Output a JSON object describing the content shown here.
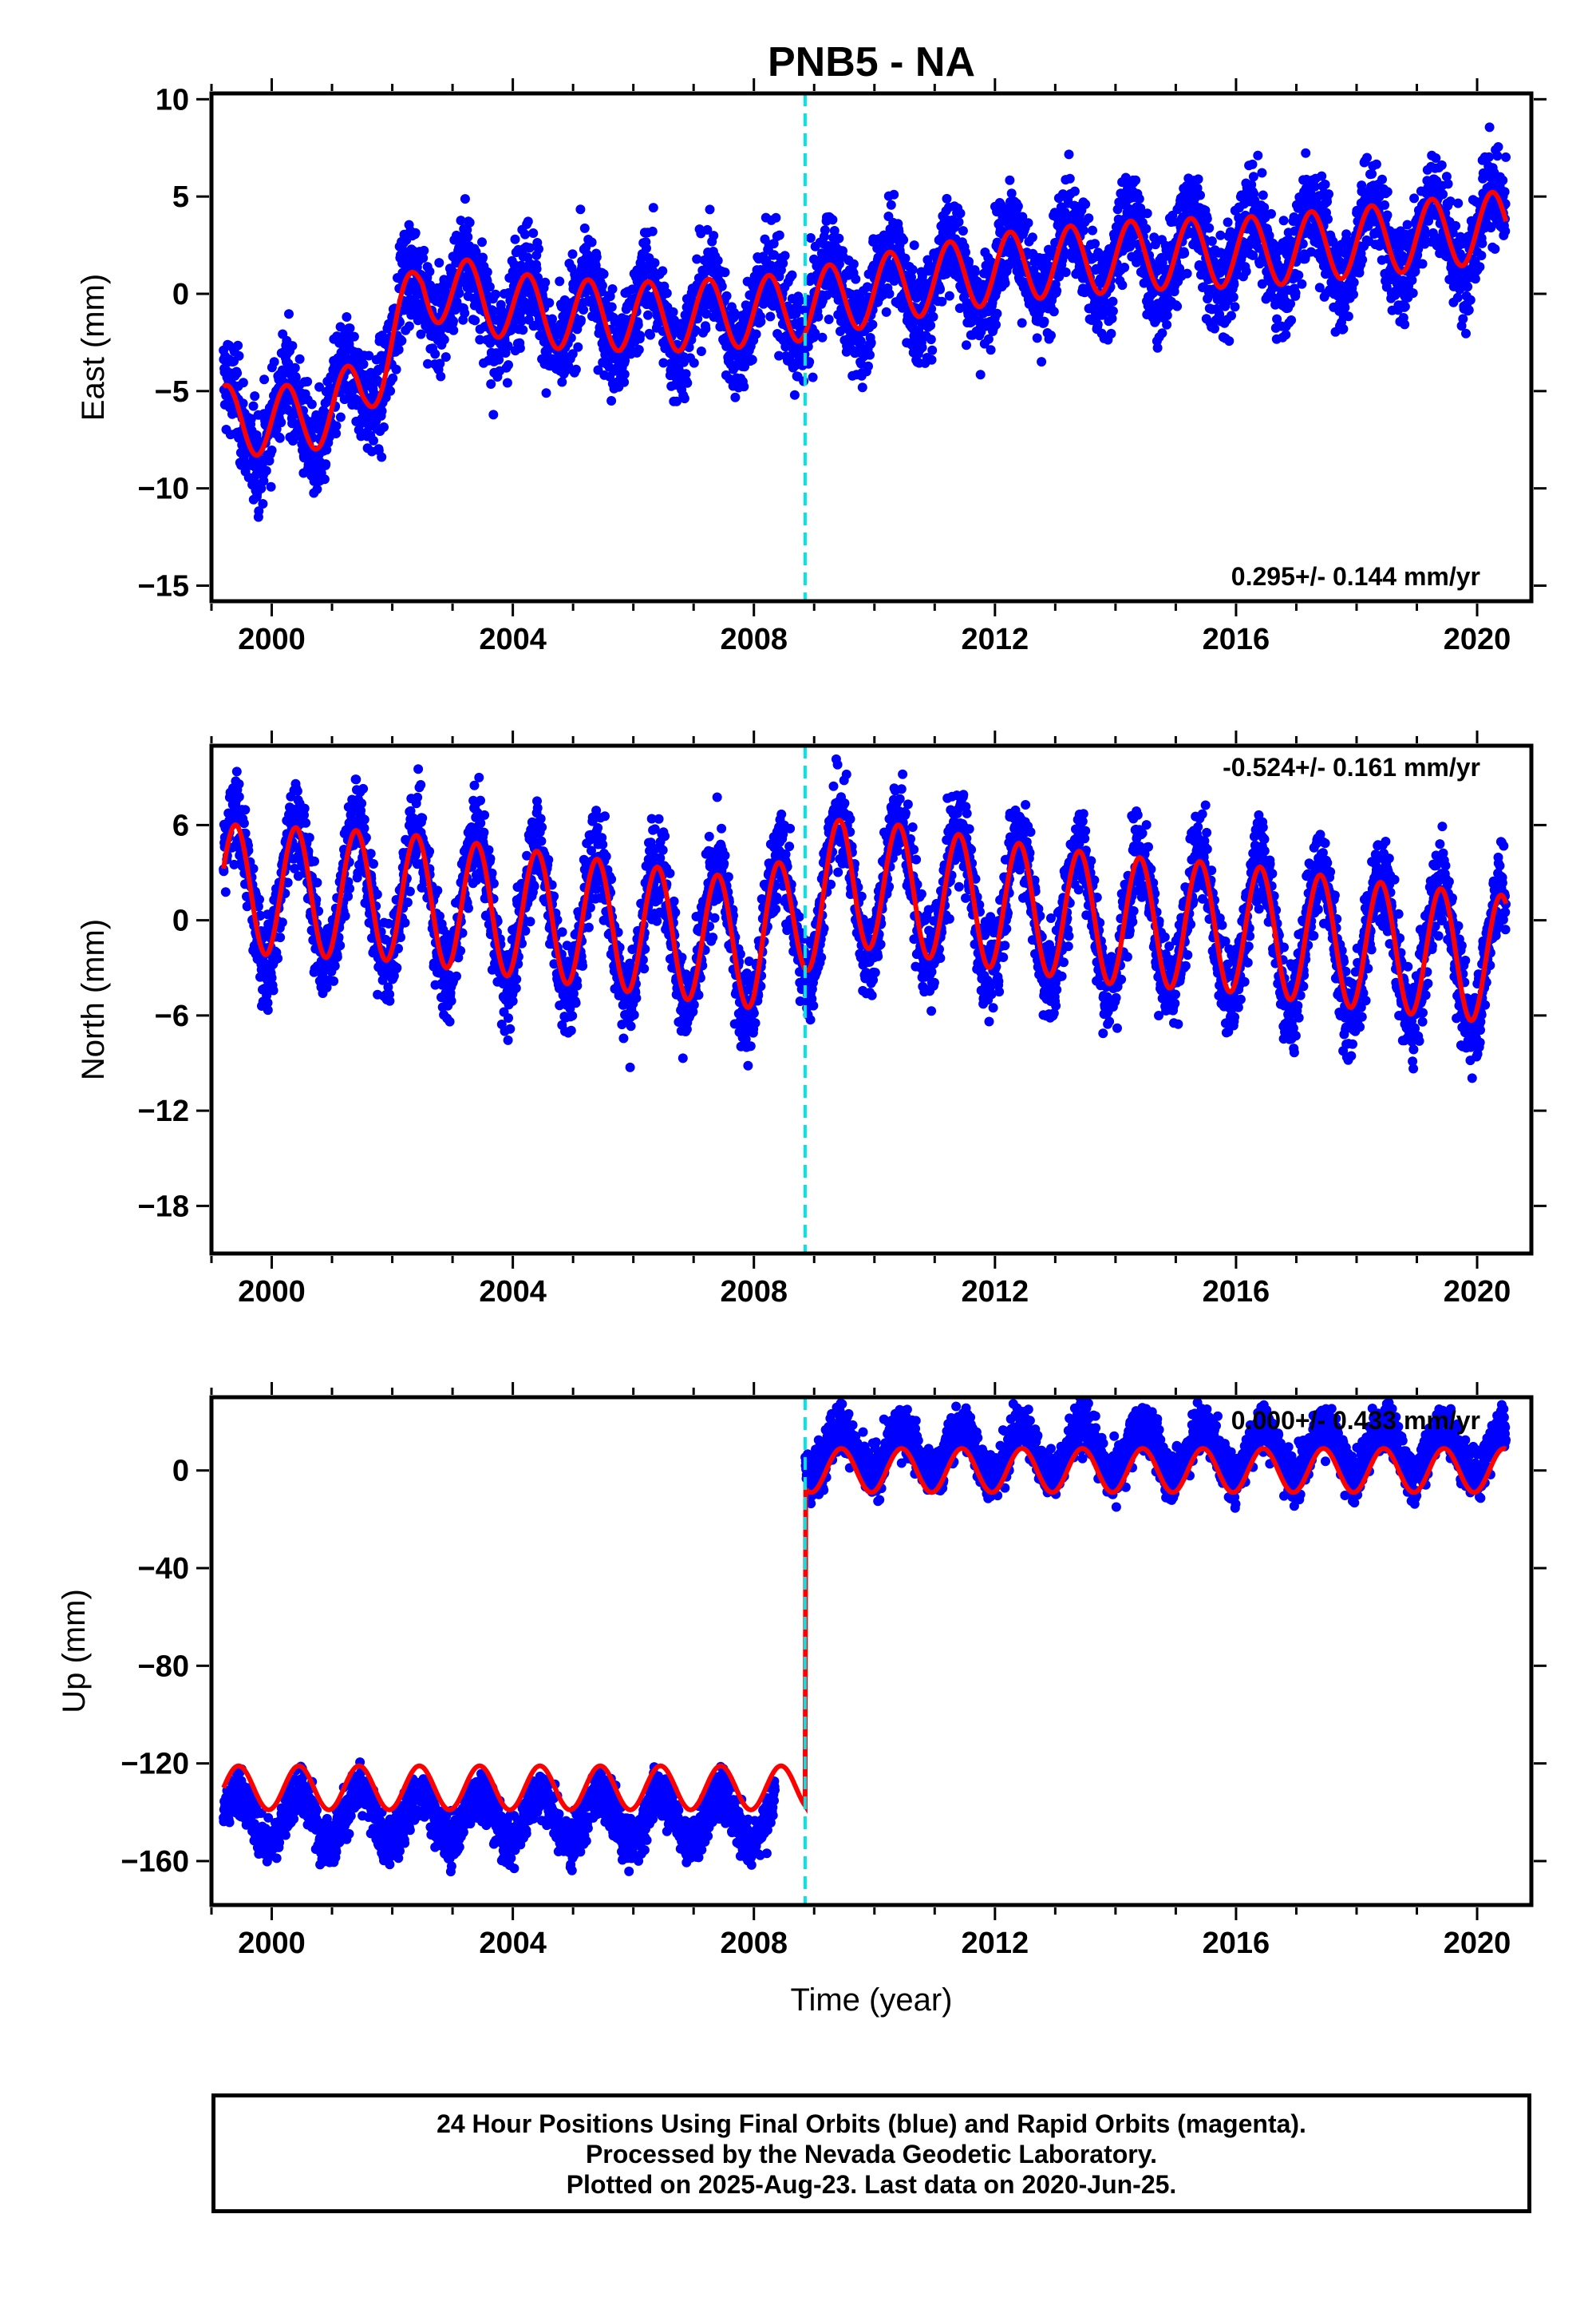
{
  "footer": {
    "line1": "24 Hour Positions Using Final Orbits (blue) and Rapid Orbits (magenta).",
    "line2": "Processed by the Nevada Geodetic Laboratory.",
    "line3": "Plotted on 2025-Aug-23. Last data on 2020-Jun-25."
  },
  "chart_data": [
    {
      "type": "scatter",
      "title": "PNB5 - NA",
      "ylabel": "East (mm)",
      "xlabel": "",
      "rate_label": "0.295+/- 0.144 mm/yr",
      "xlim": [
        1999.0,
        2020.9
      ],
      "ylim": [
        -15.8,
        10.3
      ],
      "x_ticks": [
        "2000",
        "2004",
        "2008",
        "2012",
        "2016",
        "2020"
      ],
      "x_tick_values": [
        2000,
        2004,
        2008,
        2012,
        2016,
        2020
      ],
      "y_ticks": [
        "10",
        "5",
        "0",
        "−5",
        "−10",
        "−15"
      ],
      "y_tick_values": [
        10,
        5,
        0,
        -5,
        -10,
        -15
      ],
      "discontinuity_x": 2008.85,
      "data_x_range": [
        1999.2,
        2020.48
      ],
      "colors": {
        "points": "#0000ff",
        "model": "#ff0000",
        "break": "#00e5e5"
      },
      "series": [
        {
          "x": [
            1999.2,
            2000.5,
            2001.5,
            2002.5,
            2004.5,
            2006.5,
            2008.5,
            2010.5,
            2012.5,
            2014.5,
            2016.5,
            2018.5,
            2020.48
          ],
          "values": [
            -6.5,
            -6.5,
            -5.2,
            0.5,
            -1.0,
            -1.2,
            -0.8,
            0.5,
            1.5,
            2.0,
            2.2,
            2.8,
            3.5
          ]
        }
      ]
    },
    {
      "type": "scatter",
      "ylabel": "North (mm)",
      "xlabel": "",
      "rate_label": "-0.524+/- 0.161 mm/yr",
      "xlim": [
        1999.0,
        2020.9
      ],
      "ylim": [
        -21.0,
        11.0
      ],
      "x_ticks": [
        "2000",
        "2004",
        "2008",
        "2012",
        "2016",
        "2020"
      ],
      "x_tick_values": [
        2000,
        2004,
        2008,
        2012,
        2016,
        2020
      ],
      "y_ticks": [
        "6",
        "0",
        "−6",
        "−12",
        "−18"
      ],
      "y_tick_values": [
        6,
        0,
        -6,
        -12,
        -18
      ],
      "discontinuity_x": 2008.85,
      "data_x_range": [
        1999.2,
        2020.48
      ],
      "colors": {
        "points": "#0000ff",
        "model": "#ff0000",
        "break": "#00e5e5"
      },
      "series": [
        {
          "x": [
            1999.2,
            2002.0,
            2004.0,
            2006.0,
            2008.0,
            2009.5,
            2012.0,
            2014.0,
            2016.0,
            2018.0,
            2020.48
          ],
          "values": [
            2.0,
            1.5,
            0.5,
            -0.5,
            -1.5,
            2.5,
            1.0,
            0.0,
            -0.5,
            -1.5,
            -2.5
          ]
        }
      ]
    },
    {
      "type": "scatter",
      "ylabel": "Up (mm)",
      "xlabel": "Time (year)",
      "rate_label": "0.000+/- 0.433 mm/yr",
      "xlim": [
        1999.0,
        2020.9
      ],
      "ylim": [
        -178.0,
        30.0
      ],
      "x_ticks": [
        "2000",
        "2004",
        "2008",
        "2012",
        "2016",
        "2020"
      ],
      "x_tick_values": [
        2000,
        2004,
        2008,
        2012,
        2016,
        2020
      ],
      "y_ticks": [
        "0",
        "−40",
        "−80",
        "−120",
        "−160"
      ],
      "y_tick_values": [
        0,
        -40,
        -80,
        -120,
        -160
      ],
      "discontinuity_x": 2008.85,
      "data_x_range": [
        1999.2,
        2020.48
      ],
      "colors": {
        "points": "#0000ff",
        "model": "#ff0000",
        "break": "#00e5e5"
      },
      "series": [
        {
          "x": [
            1999.2,
            2008.4,
            2008.85,
            2020.48
          ],
          "values": [
            -142,
            -142,
            8,
            8
          ]
        }
      ]
    }
  ]
}
